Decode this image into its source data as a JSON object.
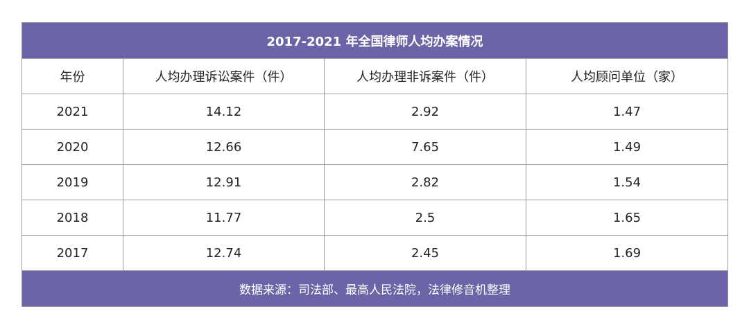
{
  "table": {
    "title": "2017-2021 年全国律师人均办案情况",
    "header": [
      "年份",
      "人均办理诉讼案件（件）",
      "人均办理非诉案件（件）",
      "人均顾问单位（家）"
    ],
    "rows": [
      [
        "2021",
        "14.12",
        "2.92",
        "1.47"
      ],
      [
        "2020",
        "12.66",
        "7.65",
        "1.49"
      ],
      [
        "2019",
        "12.91",
        "2.82",
        "1.54"
      ],
      [
        "2018",
        "11.77",
        "2.5",
        "1.65"
      ],
      [
        "2017",
        "12.74",
        "2.45",
        "1.69"
      ]
    ],
    "source": "数据来源：司法部、最高人民法院，法律修音机整理"
  }
}
